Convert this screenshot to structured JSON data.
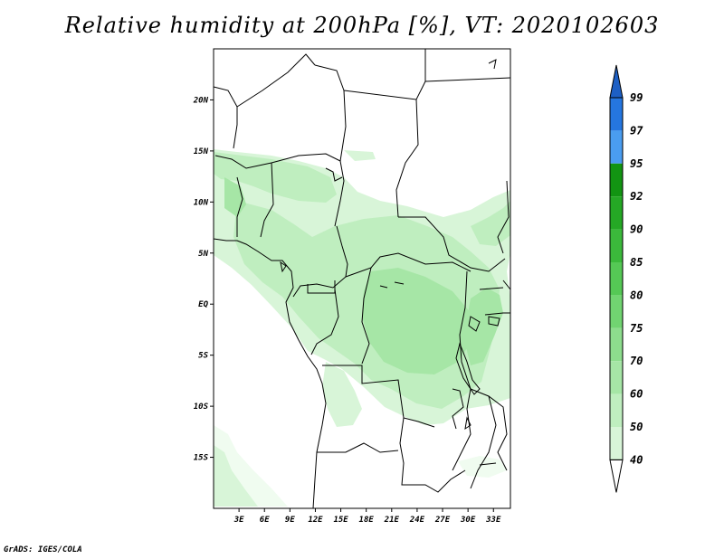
{
  "title": "Relative humidity at 200hPa [%], VT: 2020102603",
  "credit": "GrADS: IGES/COLA",
  "map": {
    "lat_labels": [
      "20N",
      "15N",
      "10N",
      "5N",
      "EQ",
      "5S",
      "10S",
      "15S"
    ],
    "lon_labels": [
      "3E",
      "6E",
      "9E",
      "12E",
      "15E",
      "18E",
      "21E",
      "24E",
      "27E",
      "30E",
      "33E"
    ],
    "lat_range": [
      -20,
      25
    ],
    "lon_range": [
      0,
      35
    ]
  },
  "colorbar": {
    "labels": [
      "99",
      "97",
      "95",
      "92",
      "90",
      "85",
      "80",
      "75",
      "70",
      "60",
      "50",
      "40"
    ],
    "colors": {
      "c40": "#f0fcf0",
      "c50": "#d8f5d8",
      "c60": "#bfeebf",
      "c70": "#a6e6a6",
      "c75": "#8ddd8d",
      "c80": "#71d471",
      "c85": "#55c855",
      "c90": "#3bb93b",
      "c92": "#25a825",
      "c95": "#129412",
      "c97": "#4a9df0",
      "c99": "#2576e0",
      "top": "#1d5fc4"
    }
  }
}
